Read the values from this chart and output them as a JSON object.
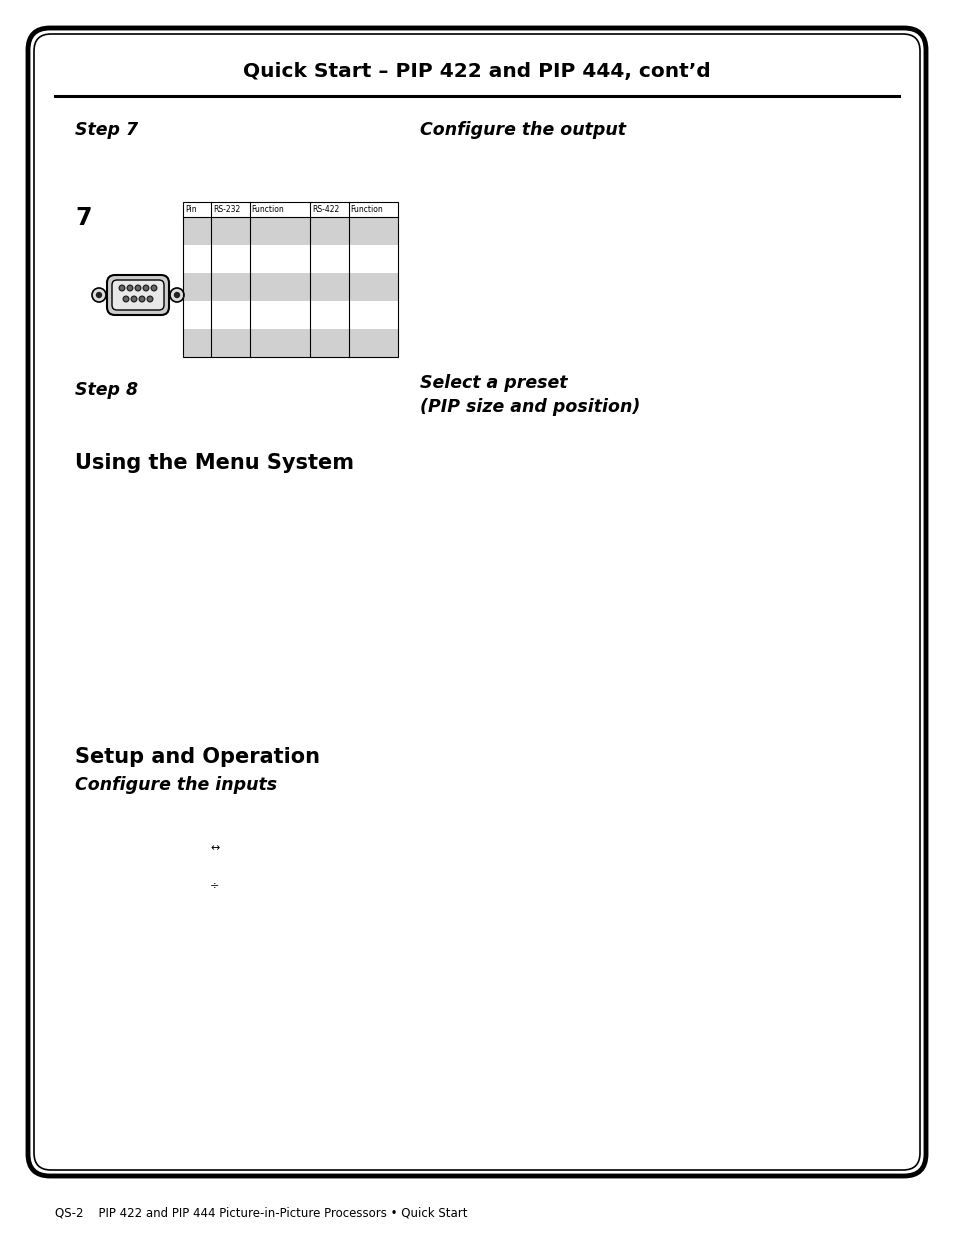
{
  "title": "Quick Start – PIP 422 and PIP 444, cont’d",
  "step7_left": "Step 7",
  "step7_right": "Configure the output",
  "step8_left": "Step 8",
  "step8_right_line1": "Select a preset",
  "step8_right_line2": "(PIP size and position)",
  "section1": "Using the Menu System",
  "section2": "Setup and Operation",
  "section2_sub": "Configure the inputs",
  "table_headers": [
    "Pin",
    "RS-232",
    "Function",
    "RS-422",
    "Function"
  ],
  "number7": "7",
  "footer": "QS-2    PIP 422 and PIP 444 Picture-in-Picture Processors • Quick Start",
  "bg_color": "#ffffff",
  "border_color": "#000000",
  "text_color": "#000000",
  "gray_row_color": "#d0d0d0",
  "bullet1": "↔",
  "bullet2": "÷"
}
